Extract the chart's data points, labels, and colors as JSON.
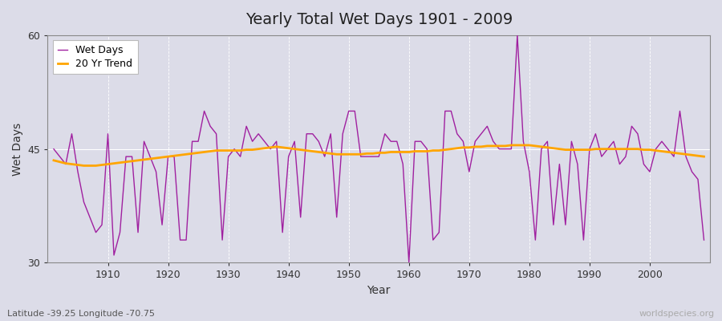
{
  "title": "Yearly Total Wet Days 1901 - 2009",
  "xlabel": "Year",
  "ylabel": "Wet Days",
  "subtitle": "Latitude -39.25 Longitude -70.75",
  "watermark": "worldspecies.org",
  "ylim": [
    30,
    60
  ],
  "yticks": [
    30,
    45,
    60
  ],
  "background_color": "#dcdce8",
  "plot_bg_color": "#dcdce8",
  "line_color_wet": "#a020a0",
  "line_color_trend": "#ffa500",
  "legend_labels": [
    "Wet Days",
    "20 Yr Trend"
  ],
  "wet_days": [
    45,
    44,
    43,
    47,
    42,
    38,
    36,
    34,
    35,
    47,
    31,
    34,
    44,
    44,
    34,
    46,
    44,
    42,
    35,
    44,
    44,
    33,
    33,
    46,
    46,
    50,
    48,
    47,
    33,
    44,
    45,
    44,
    48,
    46,
    47,
    46,
    45,
    46,
    34,
    44,
    46,
    36,
    47,
    47,
    46,
    44,
    47,
    36,
    47,
    50,
    50,
    44,
    44,
    44,
    44,
    47,
    46,
    46,
    43,
    30,
    46,
    46,
    45,
    33,
    34,
    50,
    50,
    47,
    46,
    42,
    46,
    47,
    48,
    46,
    45,
    45,
    45,
    60,
    46,
    42,
    33,
    45,
    46,
    35,
    43,
    35,
    46,
    43,
    33,
    45,
    47,
    44,
    45,
    46,
    43,
    44,
    48,
    47,
    43,
    42,
    45,
    46,
    45,
    44,
    50,
    44,
    42,
    41,
    33
  ],
  "years": [
    1901,
    1902,
    1903,
    1904,
    1905,
    1906,
    1907,
    1908,
    1909,
    1910,
    1911,
    1912,
    1913,
    1914,
    1915,
    1916,
    1917,
    1918,
    1919,
    1920,
    1921,
    1922,
    1923,
    1924,
    1925,
    1926,
    1927,
    1928,
    1929,
    1930,
    1931,
    1932,
    1933,
    1934,
    1935,
    1936,
    1937,
    1938,
    1939,
    1940,
    1941,
    1942,
    1943,
    1944,
    1945,
    1946,
    1947,
    1948,
    1949,
    1950,
    1951,
    1952,
    1953,
    1954,
    1955,
    1956,
    1957,
    1958,
    1959,
    1960,
    1961,
    1962,
    1963,
    1964,
    1965,
    1966,
    1967,
    1968,
    1969,
    1970,
    1971,
    1972,
    1973,
    1974,
    1975,
    1976,
    1977,
    1978,
    1979,
    1980,
    1981,
    1982,
    1983,
    1984,
    1985,
    1986,
    1987,
    1988,
    1989,
    1990,
    1991,
    1992,
    1993,
    1994,
    1995,
    1996,
    1997,
    1998,
    1999,
    2000,
    2001,
    2002,
    2003,
    2004,
    2005,
    2006,
    2007,
    2008,
    2009
  ],
  "trend": [
    43.5,
    43.3,
    43.1,
    43.0,
    42.9,
    42.8,
    42.8,
    42.8,
    42.9,
    43.0,
    43.1,
    43.2,
    43.3,
    43.4,
    43.5,
    43.6,
    43.7,
    43.8,
    43.9,
    44.0,
    44.1,
    44.2,
    44.3,
    44.4,
    44.5,
    44.6,
    44.7,
    44.8,
    44.8,
    44.8,
    44.8,
    44.8,
    44.9,
    44.9,
    45.0,
    45.1,
    45.2,
    45.3,
    45.2,
    45.1,
    45.0,
    44.9,
    44.8,
    44.7,
    44.6,
    44.5,
    44.4,
    44.3,
    44.3,
    44.3,
    44.3,
    44.3,
    44.4,
    44.4,
    44.5,
    44.5,
    44.6,
    44.6,
    44.6,
    44.6,
    44.7,
    44.7,
    44.7,
    44.8,
    44.8,
    44.9,
    45.0,
    45.1,
    45.2,
    45.2,
    45.3,
    45.3,
    45.4,
    45.4,
    45.4,
    45.4,
    45.5,
    45.5,
    45.5,
    45.5,
    45.4,
    45.3,
    45.2,
    45.1,
    45.0,
    44.9,
    44.9,
    44.9,
    44.9,
    44.9,
    45.0,
    45.0,
    45.0,
    45.0,
    45.0,
    45.0,
    45.0,
    45.0,
    44.9,
    44.9,
    44.8,
    44.7,
    44.6,
    44.5,
    44.4,
    44.3,
    44.2,
    44.1,
    44.0
  ]
}
